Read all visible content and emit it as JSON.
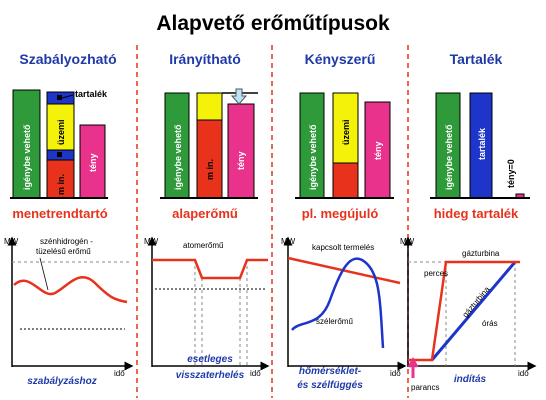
{
  "title": "Alapvető erőműtípusok",
  "columns": [
    {
      "header": "Szabályozható",
      "bars": {
        "available": "igénybe vehető",
        "min": "m in.",
        "operating": "üzemi",
        "reserve": "tartalék",
        "actual": "tény"
      },
      "subtitle": "menetrendtartó",
      "chart": {
        "y_axis": "MW",
        "x_axis": "idő",
        "label": [
          "szénhidrogén -",
          "tüzelésű erőmű"
        ],
        "caption": [
          "szabályzáshoz"
        ]
      }
    },
    {
      "header": "Irányítható",
      "bars": {
        "available": "igénybe vehető",
        "min": "m in.",
        "actual": "tény"
      },
      "subtitle": "alaperőmű",
      "chart": {
        "y_axis": "MW",
        "x_axis": "idő",
        "label": [
          "atomerőmű"
        ],
        "caption": [
          "esetleges",
          "visszaterhelés"
        ]
      }
    },
    {
      "header": "Kényszerű",
      "bars": {
        "available": "igénybe vehető",
        "operating": "üzemi",
        "actual": "tény"
      },
      "subtitle": "pl. megújuló",
      "chart": {
        "y_axis": "MW",
        "x_axis": "idő",
        "label": [
          "kapcsolt termelés",
          "szélerőmű"
        ],
        "caption": [
          "hőmérséklet-",
          "és szélfüggés"
        ]
      }
    },
    {
      "header": "Tartalék",
      "bars": {
        "available": "igénybe vehető",
        "reserve": "tartalék",
        "actual": "tény=0"
      },
      "subtitle": "hideg tartalék",
      "chart": {
        "y_axis": "MW",
        "x_axis": "idő",
        "label": [
          "gázturbina",
          "perces",
          "gázturbina",
          "órás",
          "parancs"
        ],
        "caption": [
          "indítás"
        ]
      }
    }
  ]
}
